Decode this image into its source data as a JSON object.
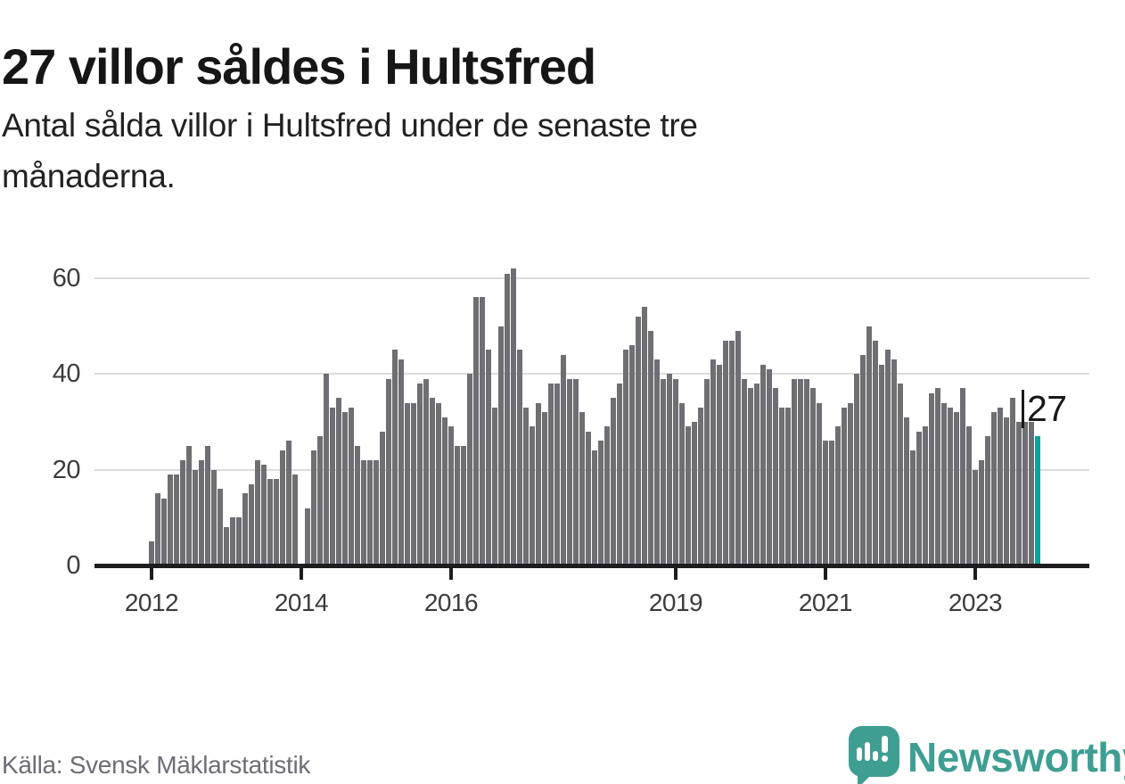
{
  "title": "27 villor såldes i Hultsfred",
  "subtitle": {
    "lines": [
      "Antal sålda villor i Hultsfred under de senaste tre",
      "månaderna."
    ]
  },
  "annotation": {
    "label": "27"
  },
  "source": "Källa: Svensk Mäklarstatistik",
  "logo": {
    "brand": "Newsworthy",
    "icon": "bar-chart-speech-bubble-icon"
  },
  "colors": {
    "bar": "#6e6e74",
    "highlight": "#0aa3a0",
    "axis": "#1d1d1f",
    "gridline": "#dcdcdc",
    "text_dark": "#161616",
    "tick_text": "#3c3c3c",
    "source_text": "#6d6d75",
    "brand_teal": "#3f9e92"
  },
  "chart_data": {
    "type": "bar",
    "title": "27 villor såldes i Hultsfred",
    "xlabel": "",
    "ylabel": "",
    "ylim": [
      0,
      64
    ],
    "grid": "horizontal",
    "y_ticks": [
      0,
      20,
      40,
      60
    ],
    "x_tick_labels": [
      "2012",
      "2014",
      "2016",
      "2019",
      "2021",
      "2023"
    ],
    "x_tick_bar_indices": [
      0,
      24,
      48,
      84,
      108,
      132
    ],
    "start_period": "2012-01",
    "end_period": "2023-11",
    "values": [
      5,
      15,
      14,
      19,
      19,
      22,
      25,
      20,
      22,
      25,
      20,
      16,
      8,
      10,
      10,
      15,
      17,
      22,
      21,
      18,
      18,
      24,
      26,
      19,
      0,
      12,
      24,
      27,
      40,
      33,
      35,
      32,
      33,
      25,
      22,
      22,
      22,
      28,
      39,
      45,
      43,
      34,
      34,
      38,
      39,
      35,
      34,
      31,
      29,
      25,
      25,
      40,
      56,
      56,
      45,
      33,
      50,
      61,
      62,
      45,
      33,
      29,
      34,
      32,
      38,
      38,
      44,
      39,
      39,
      32,
      28,
      24,
      26,
      29,
      35,
      38,
      45,
      46,
      52,
      54,
      49,
      43,
      39,
      40,
      39,
      34,
      29,
      30,
      33,
      39,
      43,
      42,
      47,
      47,
      49,
      39,
      37,
      38,
      42,
      41,
      37,
      33,
      33,
      39,
      39,
      39,
      37,
      34,
      26,
      26,
      29,
      33,
      34,
      40,
      44,
      50,
      47,
      42,
      45,
      43,
      38,
      31,
      24,
      28,
      29,
      36,
      37,
      34,
      33,
      32,
      37,
      29,
      20,
      22,
      27,
      32,
      33,
      31,
      35,
      30,
      30,
      30,
      27
    ],
    "highlight": {
      "index": 142,
      "value": 27,
      "label": "27"
    }
  }
}
